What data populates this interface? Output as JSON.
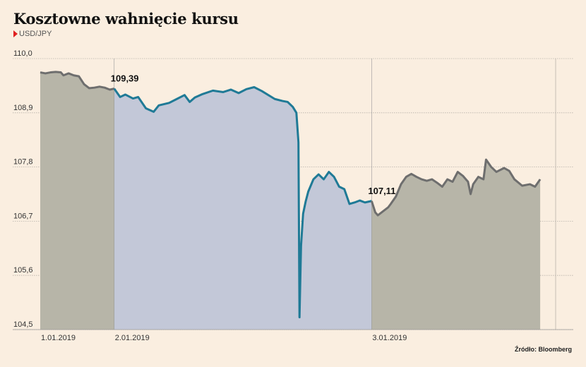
{
  "title": "Kosztowne wahnięcie kursu",
  "subtitle": "USD/JPY",
  "source": "Źródło: Bloomberg",
  "colors": {
    "background": "#faeee0",
    "gray_line": "#6e6e6e",
    "gray_fill": "#b7b5a8",
    "blue_line": "#1f7a96",
    "blue_fill": "#c3c8d8",
    "grid": "#b8b2aa"
  },
  "chart_data": {
    "type": "line",
    "title": "Kosztowne wahnięcie kursu",
    "series_label": "USD/JPY",
    "ylim": [
      104.5,
      110.0
    ],
    "y_ticks": [
      "110,0",
      "108,9",
      "107,8",
      "106,7",
      "105,6",
      "104,5"
    ],
    "y_tick_values": [
      110.0,
      108.9,
      107.8,
      106.7,
      105.6,
      104.5
    ],
    "x_tick_labels": [
      {
        "label": "1.01.2019",
        "t": 0.0
      },
      {
        "label": "2.01.2019",
        "t": 0.1435
      },
      {
        "label": "3.01.2019",
        "t": 0.643
      }
    ],
    "highlight_range": [
      0.1435,
      0.643
    ],
    "annotations": [
      {
        "text": "109,39",
        "t": 0.1435,
        "value": 109.39
      },
      {
        "text": "107,11",
        "t": 0.643,
        "value": 107.11
      }
    ],
    "series": [
      {
        "segment": "before",
        "points": [
          [
            0.0,
            109.72
          ],
          [
            0.01,
            109.7
          ],
          [
            0.02,
            109.72
          ],
          [
            0.03,
            109.73
          ],
          [
            0.04,
            109.72
          ],
          [
            0.045,
            109.66
          ],
          [
            0.055,
            109.7
          ],
          [
            0.065,
            109.66
          ],
          [
            0.075,
            109.64
          ],
          [
            0.085,
            109.48
          ],
          [
            0.095,
            109.4
          ],
          [
            0.105,
            109.41
          ],
          [
            0.115,
            109.43
          ],
          [
            0.125,
            109.41
          ],
          [
            0.135,
            109.37
          ],
          [
            0.1435,
            109.39
          ]
        ]
      },
      {
        "segment": "highlight",
        "points": [
          [
            0.1435,
            109.39
          ],
          [
            0.155,
            109.22
          ],
          [
            0.165,
            109.27
          ],
          [
            0.18,
            109.19
          ],
          [
            0.19,
            109.22
          ],
          [
            0.205,
            108.99
          ],
          [
            0.22,
            108.92
          ],
          [
            0.23,
            109.05
          ],
          [
            0.25,
            109.1
          ],
          [
            0.265,
            109.18
          ],
          [
            0.28,
            109.26
          ],
          [
            0.29,
            109.12
          ],
          [
            0.3,
            109.21
          ],
          [
            0.315,
            109.28
          ],
          [
            0.335,
            109.35
          ],
          [
            0.355,
            109.32
          ],
          [
            0.37,
            109.37
          ],
          [
            0.385,
            109.3
          ],
          [
            0.4,
            109.38
          ],
          [
            0.415,
            109.42
          ],
          [
            0.43,
            109.34
          ],
          [
            0.455,
            109.18
          ],
          [
            0.47,
            109.14
          ],
          [
            0.48,
            109.12
          ],
          [
            0.49,
            109.02
          ],
          [
            0.497,
            108.9
          ],
          [
            0.501,
            108.3
          ],
          [
            0.503,
            104.75
          ],
          [
            0.506,
            106.2
          ],
          [
            0.51,
            106.85
          ],
          [
            0.515,
            107.1
          ],
          [
            0.52,
            107.3
          ],
          [
            0.53,
            107.55
          ],
          [
            0.54,
            107.65
          ],
          [
            0.55,
            107.55
          ],
          [
            0.56,
            107.7
          ],
          [
            0.57,
            107.6
          ],
          [
            0.58,
            107.4
          ],
          [
            0.59,
            107.35
          ],
          [
            0.6,
            107.05
          ],
          [
            0.61,
            107.08
          ],
          [
            0.62,
            107.12
          ],
          [
            0.63,
            107.08
          ],
          [
            0.643,
            107.11
          ]
        ]
      },
      {
        "segment": "after",
        "points": [
          [
            0.643,
            107.11
          ],
          [
            0.65,
            106.88
          ],
          [
            0.655,
            106.82
          ],
          [
            0.665,
            106.9
          ],
          [
            0.675,
            106.98
          ],
          [
            0.68,
            107.05
          ],
          [
            0.69,
            107.2
          ],
          [
            0.7,
            107.45
          ],
          [
            0.71,
            107.6
          ],
          [
            0.72,
            107.66
          ],
          [
            0.73,
            107.6
          ],
          [
            0.74,
            107.55
          ],
          [
            0.75,
            107.52
          ],
          [
            0.76,
            107.55
          ],
          [
            0.77,
            107.48
          ],
          [
            0.78,
            107.4
          ],
          [
            0.79,
            107.55
          ],
          [
            0.8,
            107.5
          ],
          [
            0.81,
            107.7
          ],
          [
            0.82,
            107.62
          ],
          [
            0.83,
            107.5
          ],
          [
            0.835,
            107.25
          ],
          [
            0.84,
            107.45
          ],
          [
            0.85,
            107.6
          ],
          [
            0.86,
            107.55
          ],
          [
            0.865,
            107.95
          ],
          [
            0.875,
            107.8
          ],
          [
            0.885,
            107.7
          ],
          [
            0.9,
            107.78
          ],
          [
            0.91,
            107.72
          ],
          [
            0.92,
            107.55
          ],
          [
            0.935,
            107.42
          ],
          [
            0.95,
            107.45
          ],
          [
            0.96,
            107.4
          ],
          [
            0.97,
            107.55
          ]
        ]
      }
    ]
  }
}
